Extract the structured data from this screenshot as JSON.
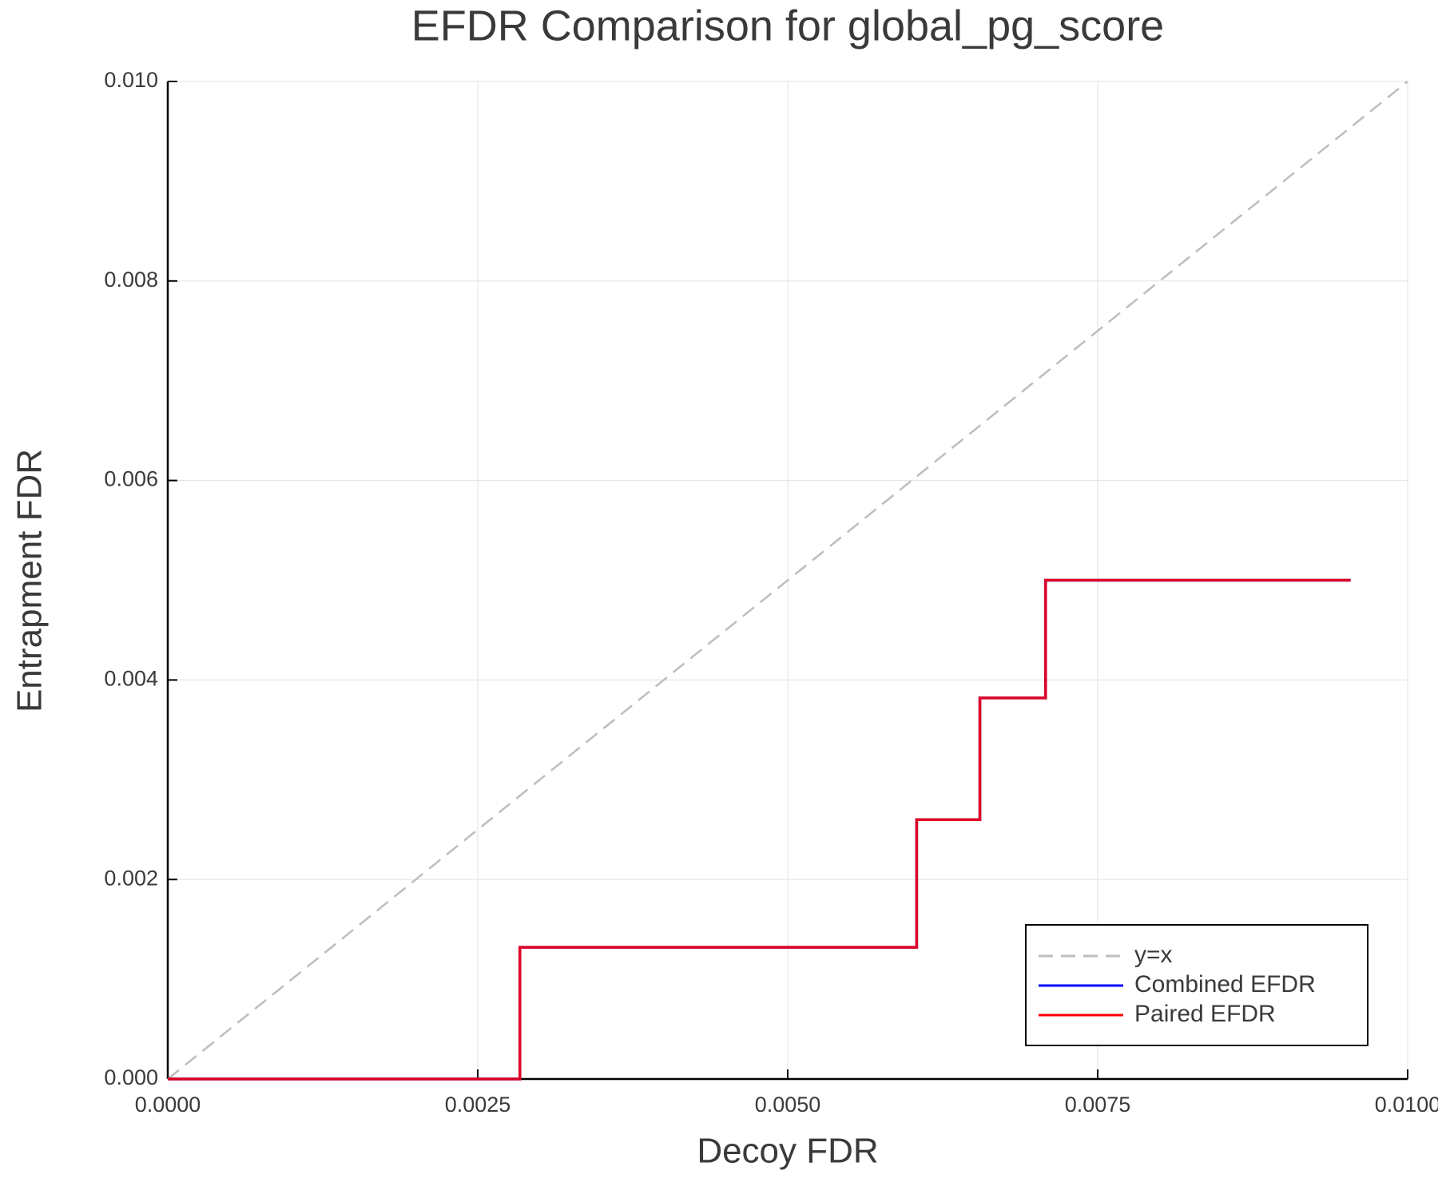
{
  "chart_data": {
    "type": "line",
    "title": "EFDR Comparison for global_pg_score",
    "x_label": "Decoy FDR",
    "y_label": "Entrapment FDR",
    "series": [
      {
        "name": "y=x",
        "color": "#bdbdbd",
        "dashed": true,
        "x": [
          0,
          0.01
        ],
        "values": [
          0,
          0.01
        ]
      },
      {
        "name": "Combined EFDR",
        "color": "#0000ff",
        "dashed": false,
        "x": [
          0,
          0.00284,
          0.00284,
          0.00604,
          0.00604,
          0.00655,
          0.00655,
          0.00708,
          0.00708,
          0.00954
        ],
        "values": [
          0,
          0,
          0.00132,
          0.00132,
          0.0026,
          0.0026,
          0.00382,
          0.00382,
          0.005,
          0.005
        ]
      },
      {
        "name": "Paired EFDR",
        "color": "#ff0000",
        "dashed": false,
        "x": [
          0,
          0.00284,
          0.00284,
          0.00604,
          0.00604,
          0.00655,
          0.00655,
          0.00708,
          0.00708,
          0.00954
        ],
        "values": [
          0,
          0,
          0.00132,
          0.00132,
          0.0026,
          0.0026,
          0.00382,
          0.00382,
          0.005,
          0.005
        ]
      }
    ],
    "xlim": [
      0,
      0.01
    ],
    "ylim": [
      0,
      0.01
    ],
    "xticks": [
      {
        "value": 0,
        "label": "0.0000"
      },
      {
        "value": 0.0025,
        "label": "0.0025"
      },
      {
        "value": 0.005,
        "label": "0.0050"
      },
      {
        "value": 0.0075,
        "label": "0.0075"
      },
      {
        "value": 0.01,
        "label": "0.0100"
      }
    ],
    "yticks": [
      {
        "value": 0,
        "label": "0.000"
      },
      {
        "value": 0.002,
        "label": "0.002"
      },
      {
        "value": 0.004,
        "label": "0.004"
      },
      {
        "value": 0.006,
        "label": "0.006"
      },
      {
        "value": 0.008,
        "label": "0.008"
      },
      {
        "value": 0.01,
        "label": "0.010"
      }
    ],
    "grid": true,
    "legend": "bottom-right"
  }
}
